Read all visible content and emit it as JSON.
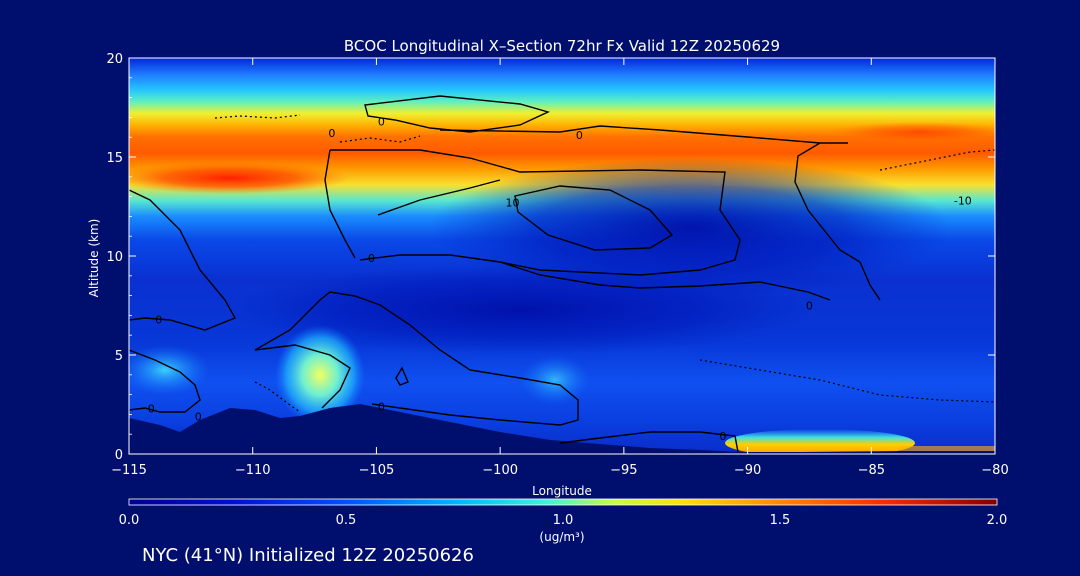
{
  "chart_data": {
    "type": "heatmap",
    "title": "BCOC Longitudinal X–Section 72hr  Fx Valid 12Z 20250629",
    "xlabel": "Longitude",
    "ylabel": "Altitude (km)",
    "xlim": [
      -115,
      -80
    ],
    "ylim": [
      0,
      20
    ],
    "x_ticks": [
      -115,
      -110,
      -105,
      -100,
      -95,
      -90,
      -85,
      -80
    ],
    "x_tick_labels": [
      "−115",
      "−110",
      "−105",
      "−100",
      "−95",
      "−90",
      "−85",
      "−80"
    ],
    "y_ticks": [
      0,
      5,
      10,
      15,
      20
    ],
    "y_tick_labels": [
      "0",
      "5",
      "10",
      "15",
      "20"
    ],
    "colorbar": {
      "min": 0.0,
      "max": 2.0,
      "ticks": [
        0.0,
        0.5,
        1.0,
        1.5,
        2.0
      ],
      "tick_labels": [
        "0.0",
        "0.5",
        "1.0",
        "1.5",
        "2.0"
      ],
      "units": "(ug/m³)"
    },
    "contour_labels": [
      {
        "text": "0",
        "lon": -104.8,
        "alt": 16.8
      },
      {
        "text": "0",
        "lon": -96.8,
        "alt": 16.1
      },
      {
        "text": "10",
        "lon": -99.5,
        "alt": 12.7
      },
      {
        "text": "0",
        "lon": -106.8,
        "alt": 16.2
      },
      {
        "text": "0",
        "lon": -105.2,
        "alt": 9.9
      },
      {
        "text": "0",
        "lon": -113.8,
        "alt": 6.8
      },
      {
        "text": "0",
        "lon": -114.1,
        "alt": 2.3
      },
      {
        "text": "0",
        "lon": -112.2,
        "alt": 1.9
      },
      {
        "text": "0",
        "lon": -104.8,
        "alt": 2.4
      },
      {
        "text": "0",
        "lon": -91.0,
        "alt": 0.9
      },
      {
        "text": "0",
        "lon": -87.5,
        "alt": 7.5
      },
      {
        "text": "-10",
        "lon": -81.3,
        "alt": 12.8
      }
    ],
    "location_label": "NYC (41°N) Initialized 12Z 20250626"
  }
}
